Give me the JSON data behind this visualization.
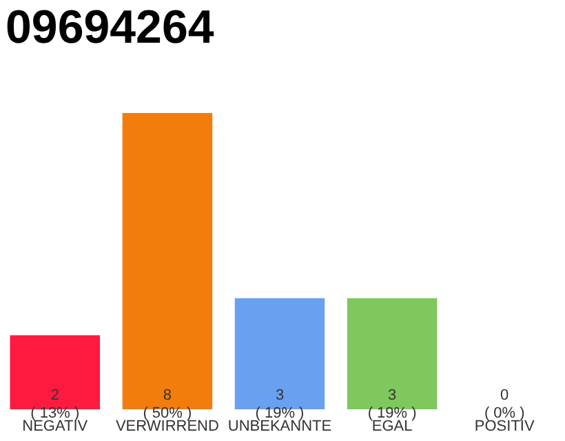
{
  "chart_data": {
    "type": "bar",
    "title": "09694264",
    "categories": [
      "NEGATIV",
      "VERWIRREND",
      "UNBEKANNTE",
      "EGAL",
      "POSITIV"
    ],
    "values": [
      2,
      8,
      3,
      3,
      0
    ],
    "colors": [
      "#ff1a40",
      "#f27d0c",
      "#6aa0f0",
      "#7ec85e",
      "#d0d0d0"
    ],
    "ylim": [
      0,
      8
    ],
    "value_labels": [
      "2\n( 13% )",
      "8\n( 50% )",
      "3\n( 19% )",
      "3\n( 19% )",
      "0\n( 0% )"
    ],
    "tick_labels": "x"
  }
}
